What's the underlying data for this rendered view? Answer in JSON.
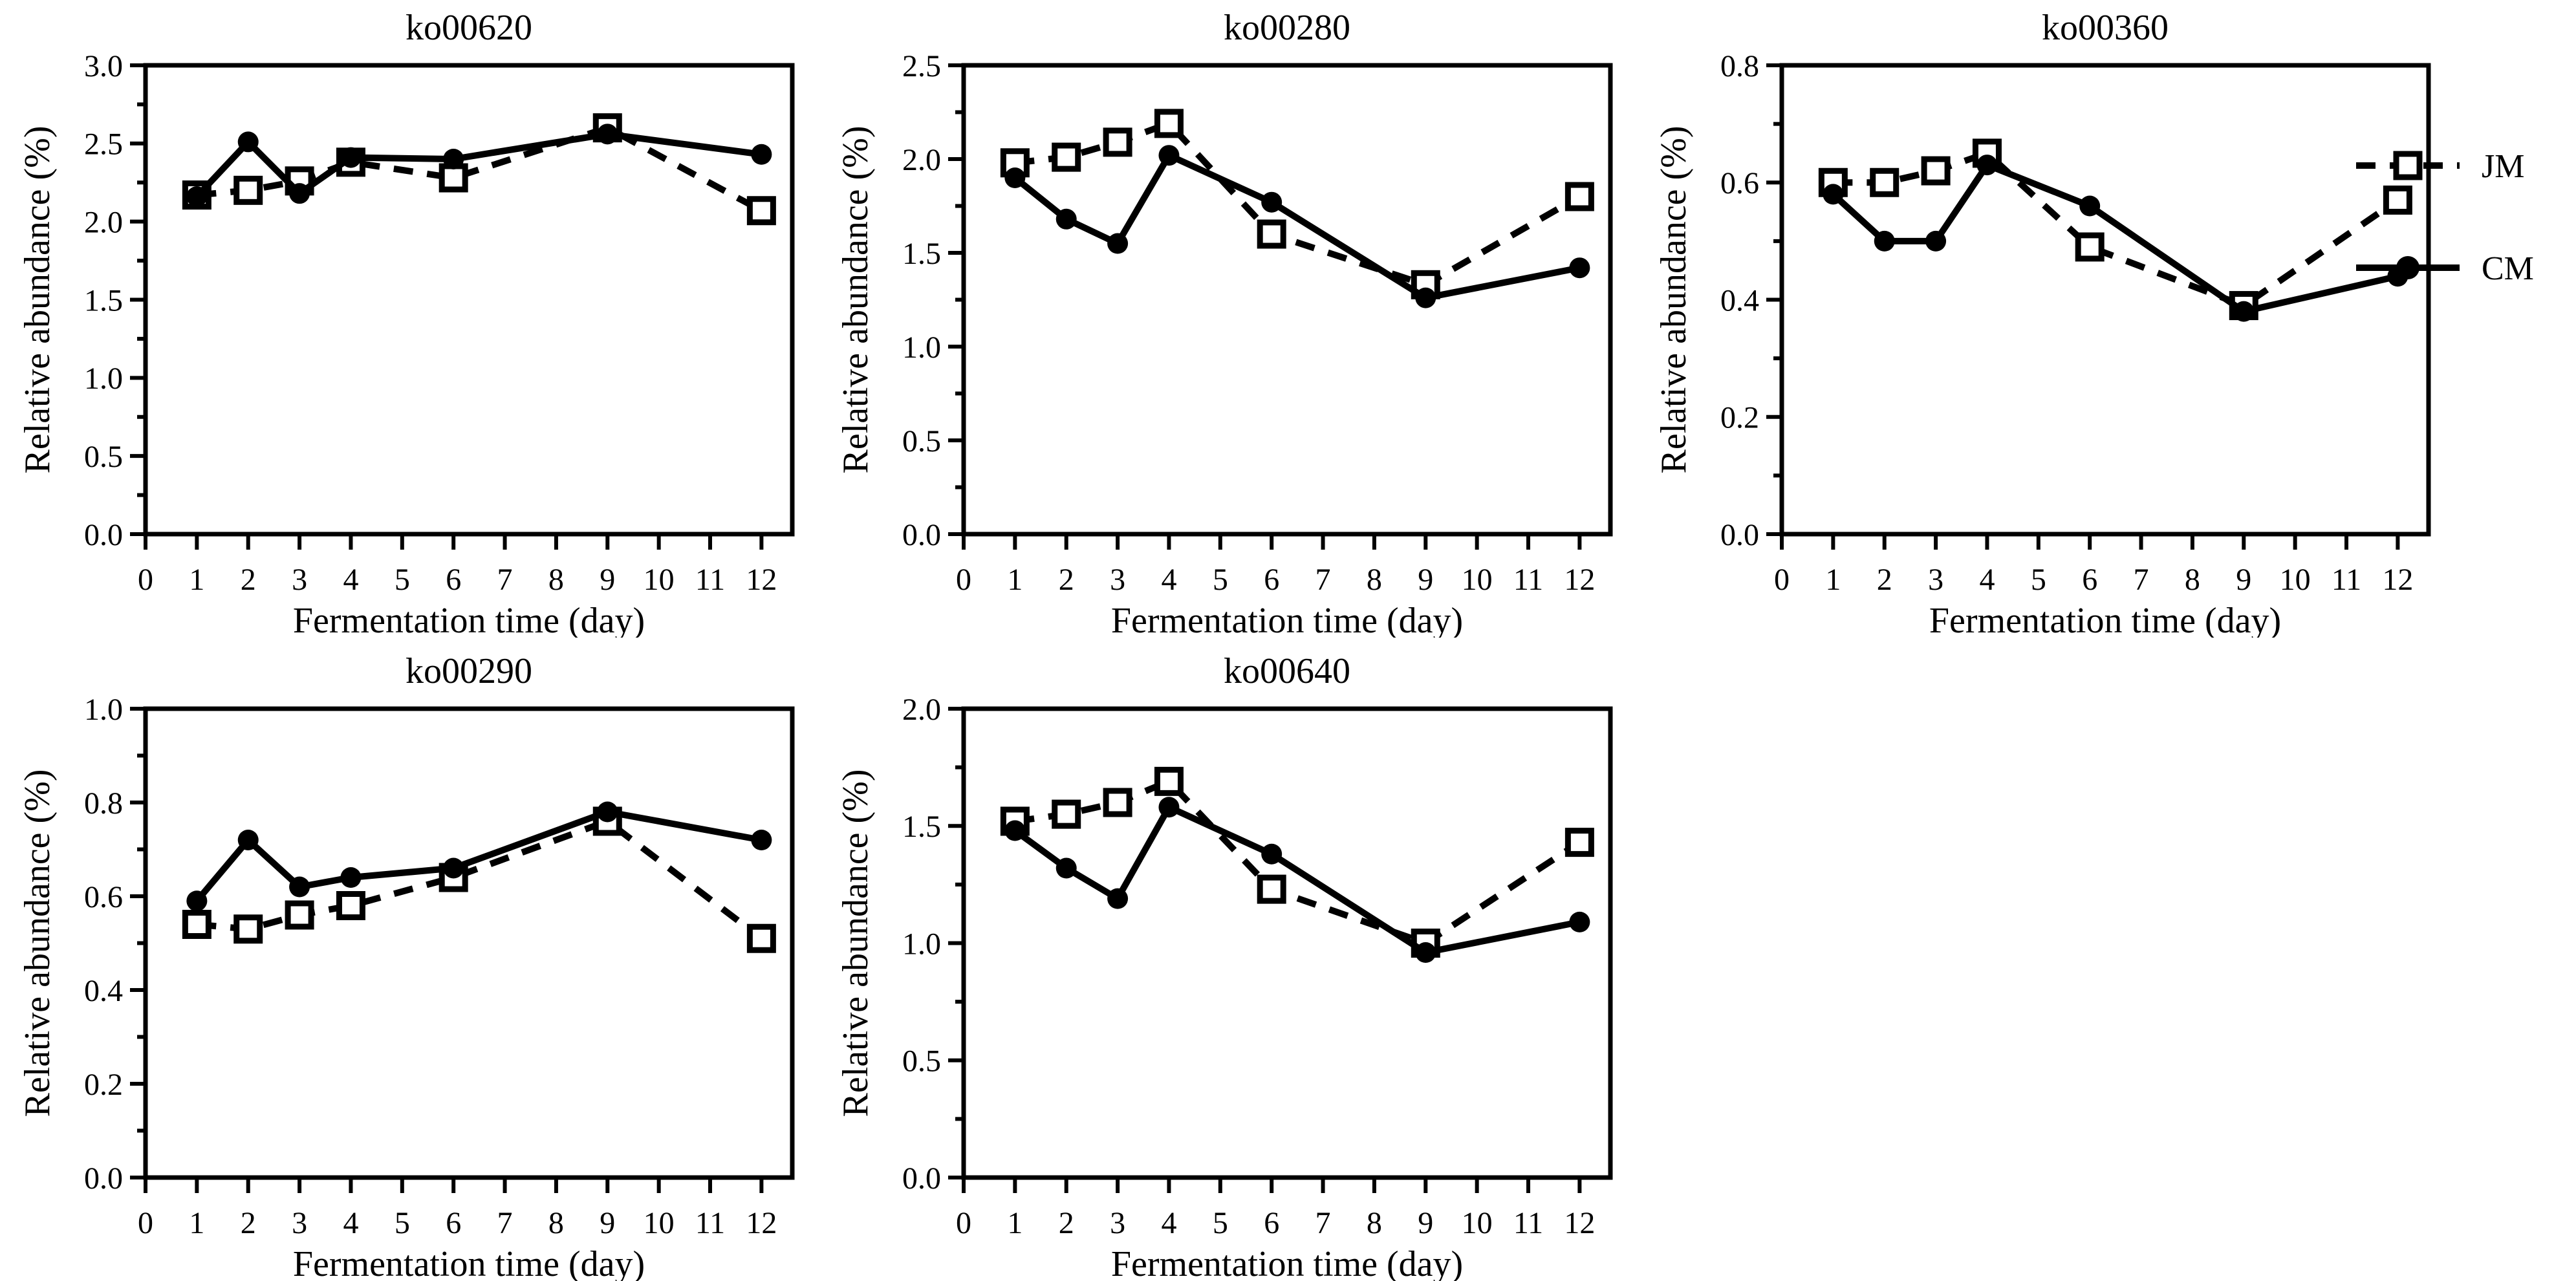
{
  "figure": {
    "background": "#ffffff",
    "ink_color": "#000000",
    "xlabel": "Fermentation time (day)",
    "ylabel": "Relative abundance (%)"
  },
  "legend": {
    "position": "right-of-top-row",
    "items": [
      {
        "label": "JM",
        "marker": "open-square",
        "line": "dashed"
      },
      {
        "label": "CM",
        "marker": "filled-circle",
        "line": "solid"
      }
    ]
  },
  "chart_data": [
    {
      "type": "line",
      "title": "ko00620",
      "xlabel": "Fermentation time (day)",
      "ylabel": "Relative abundance (%)",
      "x": [
        1,
        2,
        3,
        4,
        6,
        9,
        12
      ],
      "xticks": [
        0,
        1,
        2,
        3,
        4,
        5,
        6,
        7,
        8,
        9,
        10,
        11,
        12
      ],
      "xlim": [
        0,
        12.6
      ],
      "ylim": [
        0,
        3.0
      ],
      "ytick_step": 0.5,
      "ytick_decimals": 1,
      "grid": false,
      "series": [
        {
          "name": "JM",
          "marker": "open-square",
          "line": "dashed",
          "values": [
            2.17,
            2.2,
            2.26,
            2.38,
            2.28,
            2.6,
            2.07
          ]
        },
        {
          "name": "CM",
          "marker": "filled-circle",
          "line": "solid",
          "values": [
            2.16,
            2.51,
            2.18,
            2.41,
            2.4,
            2.56,
            2.43
          ]
        }
      ]
    },
    {
      "type": "line",
      "title": "ko00280",
      "xlabel": "Fermentation time (day)",
      "ylabel": "Relative abundance (%)",
      "x": [
        1,
        2,
        3,
        4,
        6,
        9,
        12
      ],
      "xticks": [
        0,
        1,
        2,
        3,
        4,
        5,
        6,
        7,
        8,
        9,
        10,
        11,
        12
      ],
      "xlim": [
        0,
        12.6
      ],
      "ylim": [
        0,
        2.5
      ],
      "ytick_step": 0.5,
      "ytick_decimals": 1,
      "grid": false,
      "series": [
        {
          "name": "JM",
          "marker": "open-square",
          "line": "dashed",
          "values": [
            1.98,
            2.01,
            2.09,
            2.19,
            1.6,
            1.33,
            1.8
          ]
        },
        {
          "name": "CM",
          "marker": "filled-circle",
          "line": "solid",
          "values": [
            1.9,
            1.68,
            1.55,
            2.02,
            1.77,
            1.26,
            1.42
          ]
        }
      ]
    },
    {
      "type": "line",
      "title": "ko00360",
      "xlabel": "Fermentation time (day)",
      "ylabel": "Relative abundance (%)",
      "x": [
        1,
        2,
        3,
        4,
        6,
        9,
        12
      ],
      "xticks": [
        0,
        1,
        2,
        3,
        4,
        5,
        6,
        7,
        8,
        9,
        10,
        11,
        12
      ],
      "xlim": [
        0,
        12.6
      ],
      "ylim": [
        0,
        0.8
      ],
      "ytick_step": 0.2,
      "ytick_decimals": 1,
      "grid": false,
      "series": [
        {
          "name": "JM",
          "marker": "open-square",
          "line": "dashed",
          "values": [
            0.6,
            0.6,
            0.62,
            0.65,
            0.49,
            0.39,
            0.57
          ]
        },
        {
          "name": "CM",
          "marker": "filled-circle",
          "line": "solid",
          "values": [
            0.58,
            0.5,
            0.5,
            0.63,
            0.56,
            0.38,
            0.44
          ]
        }
      ]
    },
    {
      "type": "line",
      "title": "ko00290",
      "xlabel": "Fermentation time (day)",
      "ylabel": "Relative abundance (%)",
      "x": [
        1,
        2,
        3,
        4,
        6,
        9,
        12
      ],
      "xticks": [
        0,
        1,
        2,
        3,
        4,
        5,
        6,
        7,
        8,
        9,
        10,
        11,
        12
      ],
      "xlim": [
        0,
        12.6
      ],
      "ylim": [
        0,
        1.0
      ],
      "ytick_step": 0.2,
      "ytick_decimals": 1,
      "grid": false,
      "series": [
        {
          "name": "JM",
          "marker": "open-square",
          "line": "dashed",
          "values": [
            0.54,
            0.53,
            0.56,
            0.58,
            0.64,
            0.76,
            0.51
          ]
        },
        {
          "name": "CM",
          "marker": "filled-circle",
          "line": "solid",
          "values": [
            0.59,
            0.72,
            0.62,
            0.64,
            0.66,
            0.78,
            0.72
          ]
        }
      ]
    },
    {
      "type": "line",
      "title": "ko00640",
      "xlabel": "Fermentation time (day)",
      "ylabel": "Relative abundance (%)",
      "x": [
        1,
        2,
        3,
        4,
        6,
        9,
        12
      ],
      "xticks": [
        0,
        1,
        2,
        3,
        4,
        5,
        6,
        7,
        8,
        9,
        10,
        11,
        12
      ],
      "xlim": [
        0,
        12.6
      ],
      "ylim": [
        0,
        2.0
      ],
      "ytick_step": 0.5,
      "ytick_decimals": 1,
      "grid": false,
      "series": [
        {
          "name": "JM",
          "marker": "open-square",
          "line": "dashed",
          "values": [
            1.52,
            1.55,
            1.6,
            1.69,
            1.23,
            1.0,
            1.43
          ]
        },
        {
          "name": "CM",
          "marker": "filled-circle",
          "line": "solid",
          "values": [
            1.48,
            1.32,
            1.19,
            1.58,
            1.38,
            0.96,
            1.09
          ]
        }
      ]
    }
  ]
}
